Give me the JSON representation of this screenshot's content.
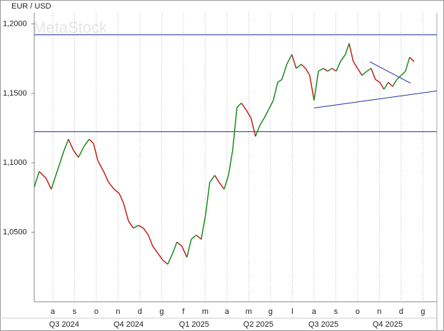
{
  "chart_data": {
    "type": "line",
    "title": "EUR / USD",
    "watermark": "MetaStock",
    "x": [
      0.15,
      0.38,
      0.7,
      0.93,
      1.2,
      1.52,
      1.72,
      1.95,
      2.18,
      2.44,
      2.67,
      2.87,
      3.07,
      3.33,
      3.56,
      3.82,
      4.05,
      4.25,
      4.48,
      4.7,
      4.93,
      5.16,
      5.39,
      5.59,
      5.82,
      6.05,
      6.28,
      6.51,
      6.7,
      6.93,
      7.16,
      7.36,
      7.59,
      7.82,
      8.02,
      8.21,
      8.44,
      8.64,
      8.87,
      9.07,
      9.26,
      9.46,
      9.66,
      9.89,
      10.11,
      10.31,
      10.51,
      10.7,
      10.9,
      11.13,
      11.33,
      11.52,
      11.75,
      11.98,
      12.18,
      12.41,
      12.61,
      12.8,
      13.0,
      13.2,
      13.43,
      13.62,
      13.82,
      14.02,
      14.21,
      14.44,
      14.61,
      14.8,
      15.0,
      15.2,
      15.43,
      15.62,
      15.82,
      16.02,
      16.21,
      16.41,
      16.61,
      16.8,
      17.0,
      17.2,
      17.39,
      17.59
    ],
    "values": [
      1.0826,
      1.0938,
      1.0887,
      1.081,
      1.0938,
      1.109,
      1.117,
      1.109,
      1.104,
      1.112,
      1.117,
      1.114,
      1.1015,
      1.094,
      1.086,
      1.081,
      1.078,
      1.071,
      1.058,
      1.053,
      1.055,
      1.053,
      1.048,
      1.04,
      1.035,
      1.03,
      1.027,
      1.035,
      1.043,
      1.04,
      1.032,
      1.045,
      1.048,
      1.045,
      1.063,
      1.086,
      1.091,
      1.086,
      1.081,
      1.091,
      1.109,
      1.14,
      1.143,
      1.138,
      1.132,
      1.119,
      1.127,
      1.132,
      1.138,
      1.145,
      1.158,
      1.16,
      1.171,
      1.178,
      1.168,
      1.171,
      1.168,
      1.163,
      1.145,
      1.166,
      1.168,
      1.166,
      1.168,
      1.166,
      1.173,
      1.178,
      1.186,
      1.173,
      1.168,
      1.163,
      1.166,
      1.168,
      1.16,
      1.158,
      1.153,
      1.158,
      1.155,
      1.16,
      1.163,
      1.166,
      1.176,
      1.173
    ],
    "up_color": "#1a8a1a",
    "down_color": "#c0201a",
    "line_color": "#1f2fa0",
    "xlim": [
      0.15,
      18.64
    ],
    "ylim": [
      1.0,
      1.208
    ],
    "yticks": [
      {
        "value": 1.05,
        "label": "1,0500"
      },
      {
        "value": 1.1,
        "label": "1,1000"
      },
      {
        "value": 1.15,
        "label": "1,1500"
      },
      {
        "value": 1.2,
        "label": "1,2000"
      }
    ],
    "xticks": [
      {
        "value": 1,
        "label": "a"
      },
      {
        "value": 2,
        "label": "s"
      },
      {
        "value": 3,
        "label": "o"
      },
      {
        "value": 4,
        "label": "n"
      },
      {
        "value": 5,
        "label": "d"
      },
      {
        "value": 6,
        "label": "g"
      },
      {
        "value": 7,
        "label": "f"
      },
      {
        "value": 8,
        "label": "m"
      },
      {
        "value": 9,
        "label": "a"
      },
      {
        "value": 10,
        "label": "m"
      },
      {
        "value": 11,
        "label": "g"
      },
      {
        "value": 12,
        "label": "l"
      },
      {
        "value": 13,
        "label": "a"
      },
      {
        "value": 14,
        "label": "s"
      },
      {
        "value": 15,
        "label": "o"
      },
      {
        "value": 16,
        "label": "n"
      },
      {
        "value": 17,
        "label": "d"
      },
      {
        "value": 18,
        "label": "g"
      }
    ],
    "quarter_labels": [
      {
        "value": 1.52,
        "label": "Q3 2024"
      },
      {
        "value": 4.48,
        "label": "Q4 2024"
      },
      {
        "value": 7.49,
        "label": "Q1 2025"
      },
      {
        "value": 10.44,
        "label": "Q2 2025"
      },
      {
        "value": 13.43,
        "label": "Q3 2025"
      },
      {
        "value": 16.38,
        "label": "Q4 2025"
      }
    ],
    "hlines": [
      1.1922,
      1.1224
    ],
    "trendlines": [
      {
        "x": [
          13.0,
          18.64
        ],
        "y": [
          1.1395,
          1.1518
        ]
      },
      {
        "x": [
          15.56,
          17.43
        ],
        "y": [
          1.1728,
          1.1574
        ]
      }
    ],
    "grid": true
  }
}
